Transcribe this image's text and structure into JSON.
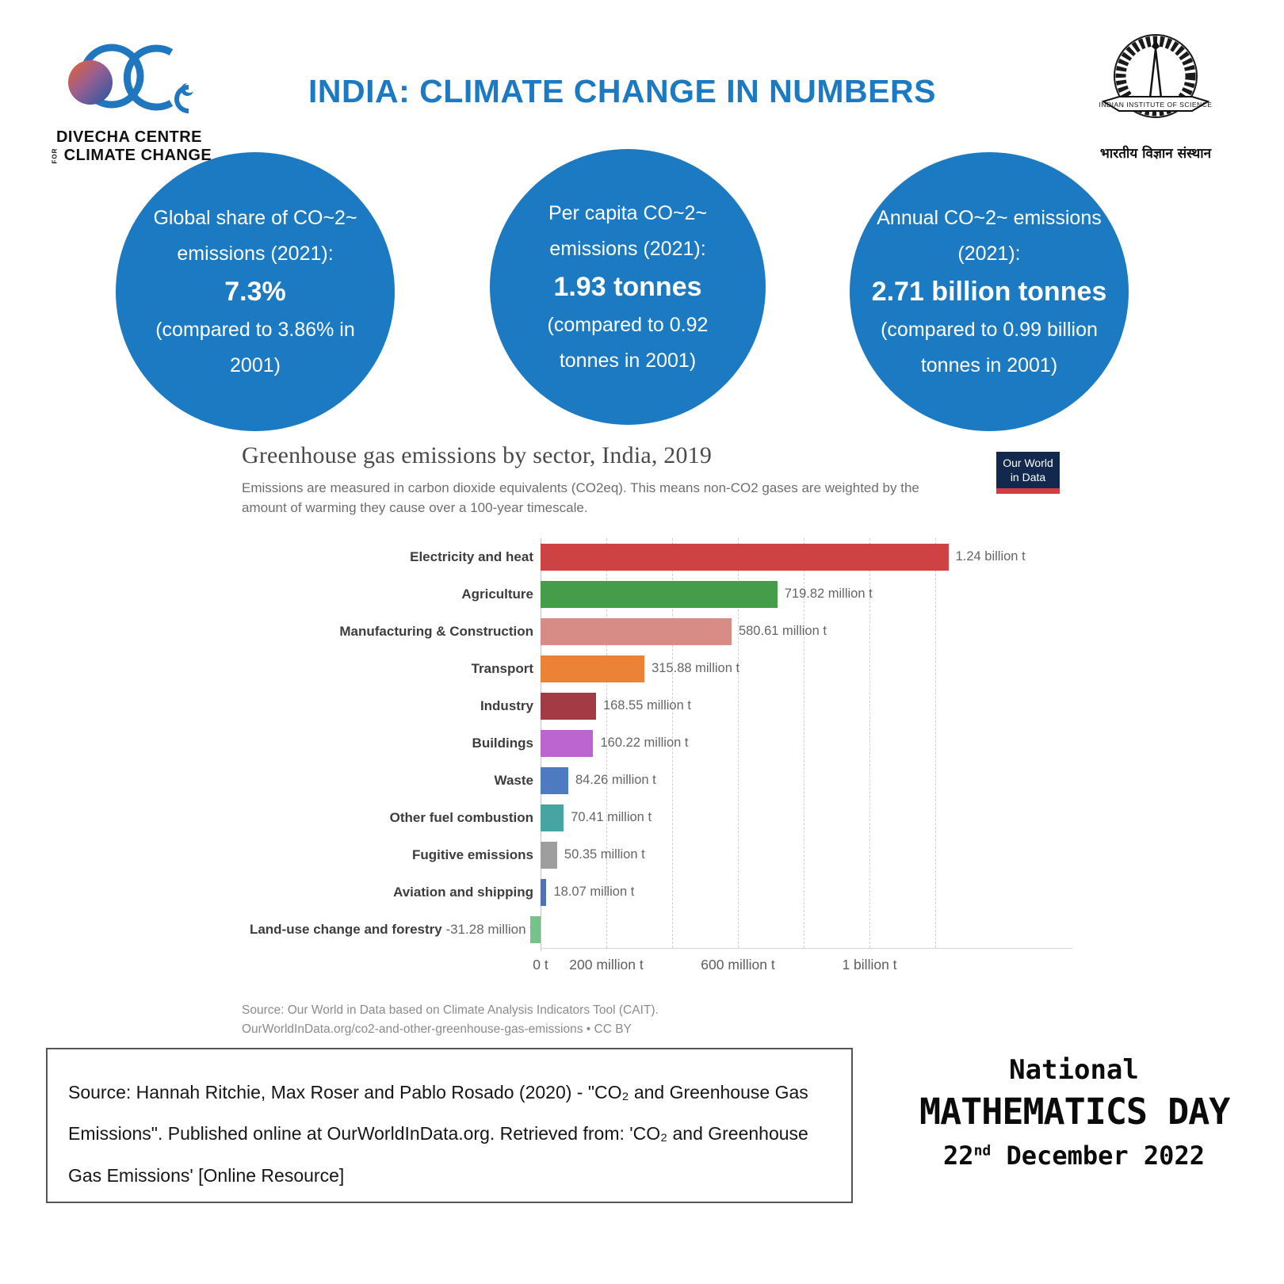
{
  "header": {
    "title": "INDIA: CLIMATE CHANGE IN NUMBERS",
    "divecha_logo": {
      "line1": "DIVECHA CENTRE",
      "for_word": "FOR",
      "line2": "CLIMATE CHANGE"
    },
    "iisc_logo": {
      "banner": "INDIAN INSTITUTE OF SCIENCE",
      "hindi": "भारतीय विज्ञान संस्थान"
    }
  },
  "stat_circles": [
    {
      "top": "Global share of CO~2~ emissions (2021):",
      "big": "7.3%",
      "bottom": "(compared to 3.86% in 2001)"
    },
    {
      "top": "Per capita CO~2~ emissions (2021):",
      "big": "1.93 tonnes",
      "bottom": "(compared to 0.92 tonnes in 2001)"
    },
    {
      "top": "Annual CO~2~ emissions (2021):",
      "big": "2.71 billion tonnes",
      "bottom": "(compared to 0.99 billion tonnes in 2001)"
    }
  ],
  "chart": {
    "owid_logo_line1": "Our World",
    "owid_logo_line2": "in Data",
    "source_line1": "Source: Our World in Data based on Climate Analysis Indicators Tool (CAIT).",
    "source_line2": "OurWorldInData.org/co2-and-other-greenhouse-gas-emissions • CC BY"
  },
  "chart_data": {
    "type": "bar",
    "orientation": "horizontal",
    "title": "Greenhouse gas emissions by sector, India, 2019",
    "subtitle": "Emissions are measured in carbon dioxide equivalents (CO2eq). This means non-CO2 gases are weighted by the amount of warming they cause over a 100-year timescale.",
    "unit": "tonnes of CO2eq",
    "categories": [
      "Electricity and heat",
      "Agriculture",
      "Manufacturing & Construction",
      "Transport",
      "Industry",
      "Buildings",
      "Waste",
      "Other fuel combustion",
      "Fugitive emissions",
      "Aviation and shipping",
      "Land-use change and forestry"
    ],
    "values_million_t": [
      1240,
      719.82,
      580.61,
      315.88,
      168.55,
      160.22,
      84.26,
      70.41,
      50.35,
      18.07,
      -31.28
    ],
    "value_labels": [
      "1.24 billion t",
      "719.82 million t",
      "580.61 million t",
      "315.88 million t",
      "168.55 million t",
      "160.22 million t",
      "84.26 million t",
      "70.41 million t",
      "50.35 million t",
      "18.07 million t",
      "-31.28 million t"
    ],
    "bar_colors": [
      "#cf4244",
      "#459d4a",
      "#d78d85",
      "#ec8235",
      "#a23b44",
      "#bc64d0",
      "#4d7ac0",
      "#46a4a2",
      "#9e9e9e",
      "#5270b4",
      "#74c489"
    ],
    "x_ticks": [
      {
        "value": 0,
        "label": "0 t"
      },
      {
        "value": 200,
        "label": "200 million t"
      },
      {
        "value": 600,
        "label": "600 million t"
      },
      {
        "value": 1000,
        "label": "1 billion t"
      }
    ],
    "gridlines_million_t": [
      200,
      400,
      600,
      800,
      1000,
      1200
    ],
    "xlim_million_t": [
      -75,
      1590
    ],
    "grid": "dashed-vertical",
    "legend": "none"
  },
  "footer": {
    "source_box_text": "Source: Hannah Ritchie, Max Roser and Pablo Rosado (2020) - \"CO₂ and Greenhouse Gas Emissions\". Published online at OurWorldInData.org. Retrieved from: 'CO₂ and Greenhouse Gas Emissions' [Online Resource]",
    "math_day": {
      "line1": "National",
      "line2": "MATHEMATICS DAY",
      "date_num": "22",
      "date_sup": "nd",
      "date_rest": " December 2022"
    }
  },
  "colors": {
    "brand_blue": "#1b7ac2",
    "owid_navy": "#12294d",
    "owid_red": "#d13d43"
  }
}
